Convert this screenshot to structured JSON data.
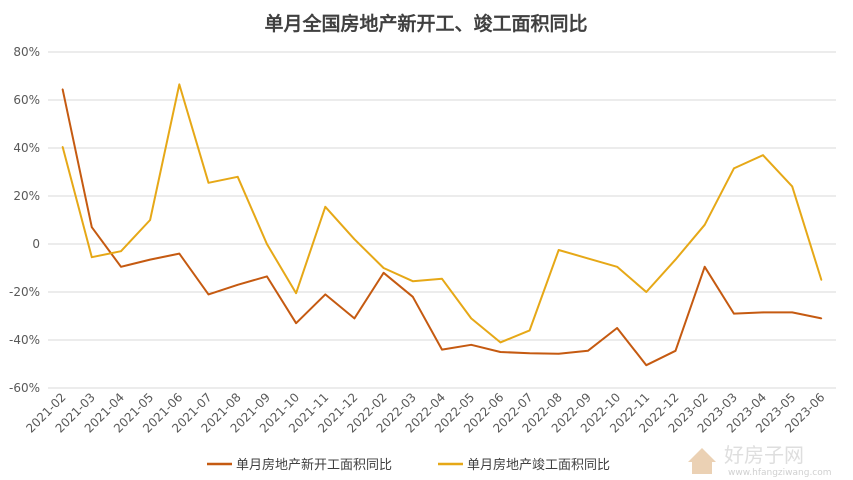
{
  "chart_data": {
    "type": "line",
    "title": "单月全国房地产新开工、竣工面积同比",
    "xlabel": "",
    "ylabel": "",
    "ylim": [
      -0.6,
      0.8
    ],
    "yticks": [
      "80%",
      "60%",
      "40%",
      "20%",
      "0",
      "-20%",
      "-40%",
      "-60%"
    ],
    "ytick_values": [
      0.8,
      0.6,
      0.4,
      0.2,
      0,
      -0.2,
      -0.4,
      -0.6
    ],
    "grid": true,
    "legend_position": "bottom",
    "categories": [
      "2021-02",
      "2021-03",
      "2021-04",
      "2021-05",
      "2021-06",
      "2021-07",
      "2021-08",
      "2021-09",
      "2021-10",
      "2021-11",
      "2021-12",
      "2022-02",
      "2022-03",
      "2022-04",
      "2022-05",
      "2022-06",
      "2022-07",
      "2022-08",
      "2022-09",
      "2022-10",
      "2022-11",
      "2022-12",
      "2023-02",
      "2023-03",
      "2023-04",
      "2023-05",
      "2023-06"
    ],
    "series": [
      {
        "name": "单月房地产新开工面积同比",
        "color": "#c55a11",
        "values": [
          0.645,
          0.07,
          -0.095,
          -0.065,
          -0.04,
          -0.21,
          -0.17,
          -0.135,
          -0.33,
          -0.21,
          -0.31,
          -0.12,
          -0.22,
          -0.44,
          -0.42,
          -0.45,
          -0.455,
          -0.457,
          -0.445,
          -0.35,
          -0.505,
          -0.445,
          -0.095,
          -0.29,
          -0.285,
          -0.285,
          -0.31
        ]
      },
      {
        "name": "单月房地产竣工面积同比",
        "color": "#e6a817",
        "values": [
          0.405,
          -0.055,
          -0.03,
          0.1,
          0.665,
          0.255,
          0.28,
          0.0,
          -0.205,
          0.155,
          0.02,
          -0.1,
          -0.155,
          -0.145,
          -0.31,
          -0.41,
          -0.36,
          -0.025,
          -0.06,
          -0.095,
          -0.2,
          -0.065,
          0.08,
          0.315,
          0.37,
          0.24,
          -0.15
        ]
      }
    ]
  },
  "watermark": {
    "logo_text": "好房子网",
    "url_text": "www.hfangziwang.com"
  }
}
